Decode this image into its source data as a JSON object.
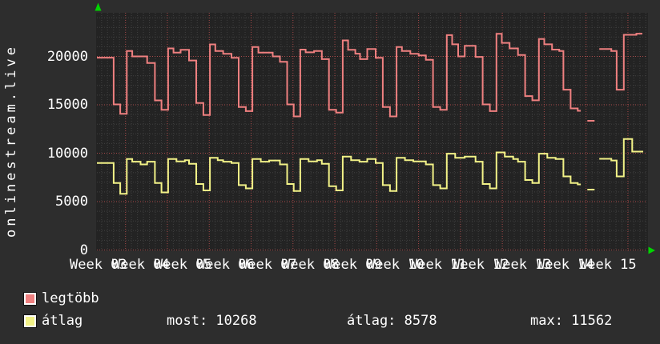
{
  "colors": {
    "background": "#2d2d2d",
    "canvas": "#232323",
    "grid_minor": "#404040",
    "grid_major": "#a84a4a",
    "series_most": "#ef8080",
    "series_avg": "#f2f287",
    "text": "#ffffff",
    "axis_arrow": "#00d400"
  },
  "legend": [
    {
      "label": "legtöbb",
      "color": "#ef8080"
    },
    {
      "label": "átlag",
      "color": "#f2f287"
    }
  ],
  "stats": {
    "most_label": "most:",
    "most_value": "10268",
    "atlag_label": "átlag:",
    "atlag_value": "8578",
    "max_label": "max:",
    "max_value": "11562"
  },
  "chart_data": {
    "type": "line",
    "title": "",
    "ylabel": "onlinestream.live",
    "xlabel": "",
    "ylim": [
      0,
      24500
    ],
    "y_ticks": [
      0,
      5000,
      10000,
      15000,
      20000
    ],
    "x_unit": "days",
    "x_range_days": [
      0,
      92
    ],
    "x_week_labels": [
      "Week 03",
      "Week 04",
      "Week 05",
      "Week 06",
      "Week 07",
      "Week 08",
      "Week 09",
      "Week 10",
      "Week 11",
      "Week 12",
      "Week 13",
      "Week 14",
      "Week 15"
    ],
    "grid": {
      "minor_per_week": 7,
      "minor_y_step": 1000,
      "major_y_step": 5000
    },
    "legend_position": "bottom-left",
    "series": [
      {
        "name": "legtöbb",
        "color": "#ef8080",
        "step": true,
        "points": [
          [
            0,
            19870
          ],
          [
            2.8,
            15040
          ],
          [
            3.9,
            14070
          ],
          [
            5.0,
            20550
          ],
          [
            5.9,
            20000
          ],
          [
            8.4,
            19310
          ],
          [
            9.7,
            15455
          ],
          [
            10.8,
            14490
          ],
          [
            11.9,
            20830
          ],
          [
            12.8,
            20400
          ],
          [
            14.0,
            20690
          ],
          [
            15.4,
            19580
          ],
          [
            16.6,
            15180
          ],
          [
            17.8,
            13940
          ],
          [
            18.9,
            21240
          ],
          [
            19.8,
            20550
          ],
          [
            21.1,
            20270
          ],
          [
            22.5,
            19860
          ],
          [
            23.7,
            14770
          ],
          [
            24.9,
            14350
          ],
          [
            26.0,
            20970
          ],
          [
            27.0,
            20400
          ],
          [
            29.4,
            20000
          ],
          [
            30.6,
            19450
          ],
          [
            31.8,
            15040
          ],
          [
            32.9,
            13800
          ],
          [
            34.0,
            20700
          ],
          [
            34.9,
            20420
          ],
          [
            36.3,
            20560
          ],
          [
            37.6,
            19720
          ],
          [
            38.8,
            14490
          ],
          [
            40.0,
            14200
          ],
          [
            41.1,
            21650
          ],
          [
            42.0,
            20690
          ],
          [
            43.2,
            20280
          ],
          [
            44.0,
            19720
          ],
          [
            45.2,
            20770
          ],
          [
            46.6,
            19860
          ],
          [
            47.8,
            14770
          ],
          [
            49.0,
            13800
          ],
          [
            50.1,
            20970
          ],
          [
            51.0,
            20550
          ],
          [
            52.4,
            20270
          ],
          [
            53.8,
            20100
          ],
          [
            55.0,
            19650
          ],
          [
            56.2,
            14770
          ],
          [
            57.4,
            14490
          ],
          [
            58.5,
            22200
          ],
          [
            59.4,
            21250
          ],
          [
            60.4,
            20000
          ],
          [
            61.5,
            21100
          ],
          [
            63.3,
            19950
          ],
          [
            64.5,
            15040
          ],
          [
            65.7,
            14350
          ],
          [
            66.8,
            22340
          ],
          [
            67.7,
            21400
          ],
          [
            69.0,
            20830
          ],
          [
            70.4,
            20140
          ],
          [
            71.6,
            15900
          ],
          [
            72.8,
            15460
          ],
          [
            73.9,
            21800
          ],
          [
            74.8,
            21250
          ],
          [
            76.1,
            20700
          ],
          [
            77.3,
            20550
          ],
          [
            78.0,
            16560
          ],
          [
            79.2,
            14630
          ],
          [
            80.4,
            14380
          ],
          [
            80.9,
            null
          ],
          [
            82.0,
            13350
          ],
          [
            83.2,
            null
          ],
          [
            84.0,
            20760
          ],
          [
            86.0,
            20550
          ],
          [
            86.9,
            16560
          ],
          [
            88.1,
            22230
          ],
          [
            90.2,
            22350
          ],
          [
            91.2,
            22350
          ]
        ]
      },
      {
        "name": "átlag",
        "color": "#f2f287",
        "step": true,
        "points": [
          [
            0,
            8980
          ],
          [
            2.8,
            6920
          ],
          [
            3.9,
            5810
          ],
          [
            5.0,
            9400
          ],
          [
            5.9,
            9120
          ],
          [
            7.3,
            8840
          ],
          [
            8.4,
            9120
          ],
          [
            9.7,
            6920
          ],
          [
            10.8,
            5950
          ],
          [
            11.9,
            9400
          ],
          [
            13.3,
            9160
          ],
          [
            14.7,
            9280
          ],
          [
            15.4,
            8900
          ],
          [
            16.6,
            6820
          ],
          [
            17.8,
            6160
          ],
          [
            18.9,
            9530
          ],
          [
            20.2,
            9280
          ],
          [
            21.1,
            9120
          ],
          [
            22.5,
            8980
          ],
          [
            23.7,
            6700
          ],
          [
            24.9,
            6360
          ],
          [
            26.0,
            9400
          ],
          [
            27.4,
            9120
          ],
          [
            28.8,
            9250
          ],
          [
            30.6,
            8840
          ],
          [
            31.8,
            6820
          ],
          [
            32.9,
            6100
          ],
          [
            34.0,
            9400
          ],
          [
            35.4,
            9160
          ],
          [
            36.8,
            9280
          ],
          [
            37.6,
            8900
          ],
          [
            38.8,
            6590
          ],
          [
            40.0,
            6160
          ],
          [
            41.1,
            9650
          ],
          [
            42.5,
            9280
          ],
          [
            43.9,
            9120
          ],
          [
            45.2,
            9400
          ],
          [
            46.6,
            8980
          ],
          [
            47.8,
            6700
          ],
          [
            49.0,
            6100
          ],
          [
            50.1,
            9530
          ],
          [
            51.5,
            9280
          ],
          [
            52.9,
            9160
          ],
          [
            55.0,
            8840
          ],
          [
            56.2,
            6700
          ],
          [
            57.4,
            6360
          ],
          [
            58.5,
            9950
          ],
          [
            59.9,
            9530
          ],
          [
            61.5,
            9650
          ],
          [
            63.3,
            9120
          ],
          [
            64.5,
            6820
          ],
          [
            65.7,
            6360
          ],
          [
            66.8,
            10080
          ],
          [
            68.2,
            9650
          ],
          [
            69.6,
            9400
          ],
          [
            70.4,
            9120
          ],
          [
            71.6,
            7230
          ],
          [
            72.8,
            6920
          ],
          [
            73.9,
            9950
          ],
          [
            75.3,
            9530
          ],
          [
            76.7,
            9400
          ],
          [
            78.0,
            7600
          ],
          [
            79.2,
            6920
          ],
          [
            80.4,
            6780
          ],
          [
            80.9,
            null
          ],
          [
            82.0,
            6240
          ],
          [
            83.2,
            null
          ],
          [
            84.0,
            9420
          ],
          [
            86.0,
            9250
          ],
          [
            86.9,
            7600
          ],
          [
            88.1,
            11460
          ],
          [
            89.5,
            10165
          ],
          [
            91.2,
            10080
          ]
        ]
      }
    ]
  }
}
